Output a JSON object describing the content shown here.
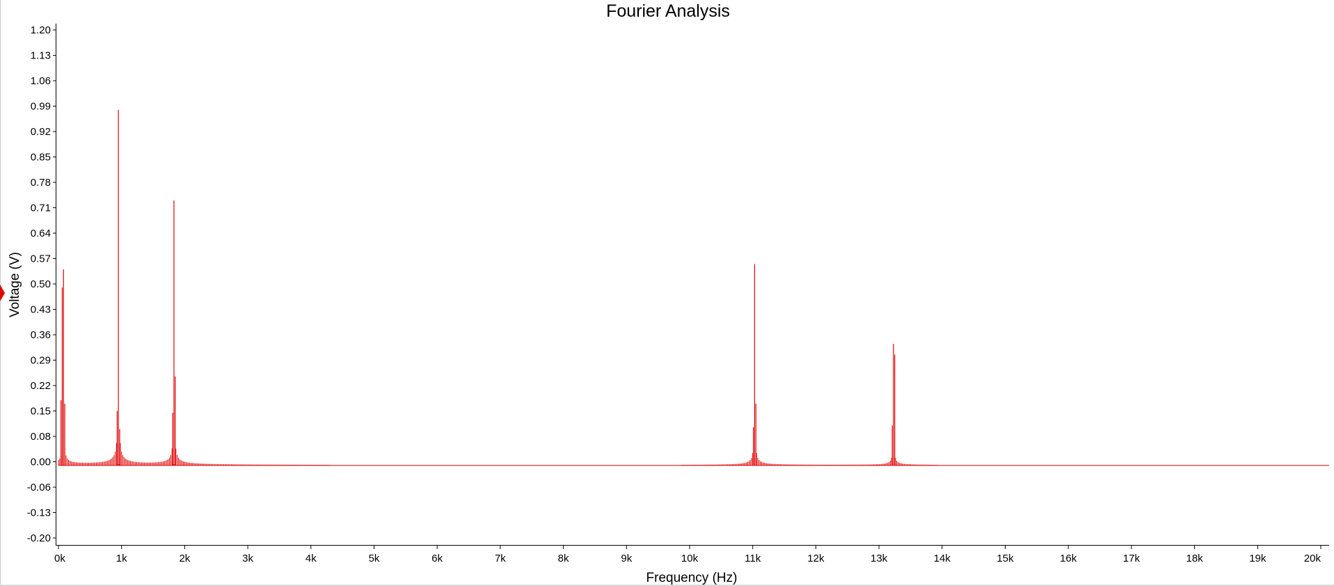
{
  "chart_data": {
    "type": "bar",
    "title": "Fourier Analysis",
    "xlabel": "Frequency (Hz)",
    "ylabel": "Voltage (V)",
    "xlim": [
      0,
      20000
    ],
    "ylim": [
      -0.2,
      1.2
    ],
    "grid": false,
    "y_ticks": [
      "1.20",
      "1.13",
      "1.06",
      "0.99",
      "0.92",
      "0.85",
      "0.78",
      "0.71",
      "0.64",
      "0.57",
      "0.50",
      "0.43",
      "0.36",
      "0.29",
      "0.22",
      "0.15",
      "0.08",
      "0.00",
      "-0.06",
      "-0.13",
      "-0.20"
    ],
    "x_ticks": [
      "0k",
      "1k",
      "2k",
      "3k",
      "4k",
      "5k",
      "6k",
      "7k",
      "8k",
      "9k",
      "10k",
      "11k",
      "12k",
      "13k",
      "14k",
      "15k",
      "16k",
      "17k",
      "18k",
      "19k",
      "20k"
    ],
    "series_color": "#e00000",
    "axis_color": "#000000",
    "series": [
      {
        "peaks": [
          {
            "frequency": 80,
            "voltage": 0.54
          },
          {
            "frequency": 60,
            "voltage": 0.49
          },
          {
            "frequency": 100,
            "voltage": 0.17
          },
          {
            "frequency": 40,
            "voltage": 0.18
          },
          {
            "frequency": 950,
            "voltage": 0.98
          },
          {
            "frequency": 930,
            "voltage": 0.15
          },
          {
            "frequency": 970,
            "voltage": 0.1
          },
          {
            "frequency": 1830,
            "voltage": 0.73
          },
          {
            "frequency": 1850,
            "voltage": 0.245
          },
          {
            "frequency": 1810,
            "voltage": 0.145
          },
          {
            "frequency": 11030,
            "voltage": 0.555
          },
          {
            "frequency": 11050,
            "voltage": 0.17
          },
          {
            "frequency": 11010,
            "voltage": 0.105
          },
          {
            "frequency": 13230,
            "voltage": 0.335
          },
          {
            "frequency": 13250,
            "voltage": 0.305
          },
          {
            "frequency": 13210,
            "voltage": 0.11
          }
        ]
      }
    ]
  }
}
